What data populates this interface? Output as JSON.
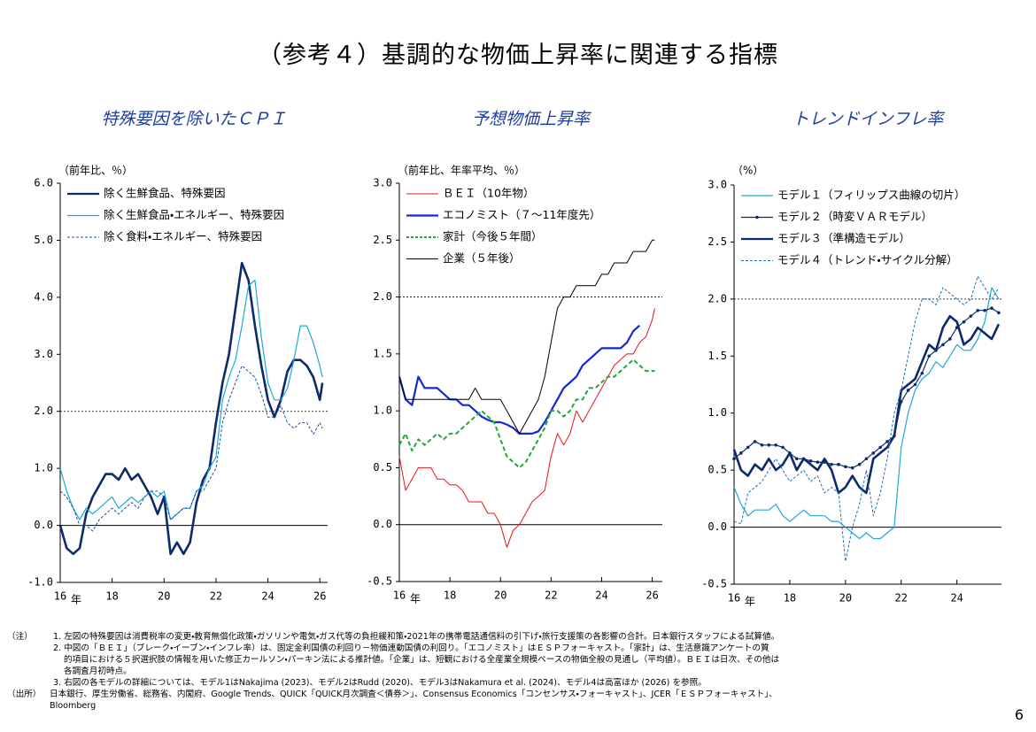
{
  "page": {
    "title": "（参考４）基調的な物価上昇率に関連する指標",
    "notes_label": "（注）",
    "notes": [
      "1. 左図の特殊要因は消費税率の変更・教育無償化政策・ガソリンや電気・ガス代等の負担緩和策・2021年の携帯電話通信料の引下げ・旅行支援策の各影響の合計。日本銀行スタッフによる試算値。",
      "2. 中図の「ＢＥＩ」（ブレーク・イーブン・インフレ率）は、固定金利国債の利回り－物価連動国債の利回り。「エコノミスト」はＥＳＰフォーキャスト。「家計」は、生活意識アンケートの質",
      "的項目における５択選択肢の情報を用いた修正カールソン・パーキン法による推計値。「企業」は、短観における全産業全規模ベースの物価全般の見通し（平均値）。ＢＥＩは日次、その他は",
      "各調査月初時点。",
      "3. 右図の各モデルの詳細については、モデル1はNakajima (2023)、モデル2はRudd (2020)、モデル3はNakamura et al. (2024)、モデル4は高富ほか (2026) を参照。"
    ],
    "source_label": "（出所）",
    "source": [
      "日本銀行、厚生労働省、総務省、内閣府、Google Trends、QUICK「QUICK月次調査＜債券＞」、Consensus Economics「コンセンサス・フォーキャスト」、JCER「ＥＳＰフォーキャスト」、",
      "Bloomberg"
    ],
    "page_number": "6"
  },
  "chart_data": [
    {
      "type": "line",
      "title": "特殊要因を除いたＣＰＩ",
      "y_unit": "（前年比、％）",
      "x_unit": "年",
      "x": [
        16,
        16.25,
        16.5,
        16.75,
        17,
        17.25,
        17.5,
        17.75,
        18,
        18.25,
        18.5,
        18.75,
        19,
        19.25,
        19.5,
        19.75,
        20,
        20.25,
        20.5,
        20.75,
        21,
        21.25,
        21.5,
        21.75,
        22,
        22.25,
        22.5,
        22.75,
        23,
        23.25,
        23.5,
        23.75,
        24,
        24.25,
        24.5,
        24.75,
        25,
        25.25,
        25.5,
        25.75,
        26,
        26.1
      ],
      "xlim": [
        16,
        26.3
      ],
      "xticks": [
        16,
        18,
        20,
        22,
        24,
        26
      ],
      "ylim": [
        -1,
        6
      ],
      "yticks": [
        {
          "value": -1,
          "label": "-1.0"
        },
        {
          "value": 0,
          "label": "0.0"
        },
        {
          "value": 1,
          "label": "1.0"
        },
        {
          "value": 2,
          "label": "2.0"
        },
        {
          "value": 3,
          "label": "3.0"
        },
        {
          "value": 4,
          "label": "4.0"
        },
        {
          "value": 5,
          "label": "5.0"
        },
        {
          "value": 6,
          "label": "6.0"
        }
      ],
      "ref_line": 2,
      "series": [
        {
          "name": "除く生鮮食品、特殊要因",
          "color": "#0d2a6b",
          "width": 2.6,
          "dash": false,
          "marker": false,
          "values": [
            0,
            -0.4,
            -0.5,
            -0.4,
            0.2,
            0.5,
            0.7,
            0.9,
            0.9,
            0.8,
            1,
            0.8,
            0.9,
            0.7,
            0.5,
            0.2,
            0.5,
            -0.5,
            -0.3,
            -0.5,
            -0.3,
            0.4,
            0.8,
            1,
            1.8,
            2.5,
            3,
            3.8,
            4.6,
            4.3,
            3.5,
            2.8,
            2.2,
            1.9,
            2.2,
            2.7,
            2.9,
            2.9,
            2.8,
            2.6,
            2.2,
            2.5
          ]
        },
        {
          "name": "除く生鮮食品・エネルギー、特殊要因",
          "color": "#1ca7e0",
          "width": 1.2,
          "dash": false,
          "marker": false,
          "values": [
            1,
            0.6,
            0.3,
            0.1,
            0.3,
            0.2,
            0.3,
            0.4,
            0.5,
            0.3,
            0.4,
            0.5,
            0.4,
            0.5,
            0.6,
            0.5,
            0.6,
            0.1,
            0.2,
            0.3,
            0.3,
            0.6,
            0.7,
            1,
            1.2,
            2.2,
            2.6,
            2.9,
            3.5,
            4.2,
            4.3,
            3.3,
            2.5,
            2.2,
            2.2,
            2.4,
            2.9,
            3.5,
            3.5,
            3.2,
            2.8,
            2.6
          ]
        },
        {
          "name": "除く食料・エネルギー、特殊要因",
          "color": "#1a4ea0",
          "width": 1,
          "dash": true,
          "marker": false,
          "values": [
            0.6,
            0.5,
            0.3,
            0,
            0,
            -0.1,
            0.1,
            0.2,
            0.3,
            0.2,
            0.3,
            0.4,
            0.3,
            0.5,
            0.6,
            0.6,
            0.5,
            0.1,
            0.2,
            0.3,
            0.3,
            0.6,
            0.6,
            0.8,
            1,
            1.8,
            2.2,
            2.5,
            2.8,
            2.7,
            2.6,
            2.3,
            1.9,
            1.9,
            2.1,
            1.8,
            1.7,
            1.8,
            1.8,
            1.6,
            1.8,
            1.7
          ]
        }
      ]
    },
    {
      "type": "line",
      "title": "予想物価上昇率",
      "y_unit": "（前年比、年率平均、％）",
      "x_unit": "年",
      "x": [
        16,
        16.25,
        16.5,
        16.75,
        17,
        17.25,
        17.5,
        17.75,
        18,
        18.25,
        18.5,
        18.75,
        19,
        19.25,
        19.5,
        19.75,
        20,
        20.25,
        20.5,
        20.75,
        21,
        21.25,
        21.5,
        21.75,
        22,
        22.25,
        22.5,
        22.75,
        23,
        23.25,
        23.5,
        23.75,
        24,
        24.25,
        24.5,
        24.75,
        25,
        25.25,
        25.5,
        25.75,
        26,
        26.1
      ],
      "xlim": [
        16,
        26.4
      ],
      "xticks": [
        16,
        18,
        20,
        22,
        24,
        26
      ],
      "ylim": [
        -0.5,
        3
      ],
      "yticks": [
        {
          "value": -0.5,
          "label": "-0.5"
        },
        {
          "value": 0,
          "label": "0.0"
        },
        {
          "value": 0.5,
          "label": "0.5"
        },
        {
          "value": 1,
          "label": "1.0"
        },
        {
          "value": 1.5,
          "label": "1.5"
        },
        {
          "value": 2,
          "label": "2.0"
        },
        {
          "value": 2.5,
          "label": "2.5"
        },
        {
          "value": 3,
          "label": "3.0"
        }
      ],
      "ref_line": 2,
      "series": [
        {
          "name": "ＢＥＩ（10年物）",
          "color": "#e8141b",
          "width": 1,
          "dash": false,
          "marker": false,
          "values": [
            0.6,
            0.3,
            0.4,
            0.5,
            0.5,
            0.5,
            0.4,
            0.4,
            0.35,
            0.35,
            0.3,
            0.2,
            0.2,
            0.2,
            0.1,
            0.1,
            0,
            -0.2,
            -0.05,
            0,
            0.1,
            0.2,
            0.25,
            0.3,
            0.6,
            0.8,
            0.7,
            0.8,
            1,
            0.9,
            1,
            1.1,
            1.2,
            1.3,
            1.4,
            1.45,
            1.5,
            1.5,
            1.6,
            1.65,
            1.8,
            1.9
          ]
        },
        {
          "name": "エコノミスト（７～11年度先）",
          "color": "#1428d6",
          "width": 2.2,
          "dash": false,
          "marker": false,
          "values": [
            1.3,
            1.1,
            1.05,
            1.3,
            1.2,
            1.2,
            1.2,
            1.15,
            1.1,
            1.1,
            1.05,
            1.05,
            1,
            0.95,
            0.92,
            0.9,
            0.9,
            0.88,
            0.85,
            0.8,
            0.8,
            0.8,
            0.82,
            0.9,
            1,
            1.1,
            1.2,
            1.25,
            1.3,
            1.4,
            1.45,
            1.5,
            1.55,
            1.55,
            1.55,
            1.55,
            1.6,
            1.7,
            1.75,
            null,
            null,
            null
          ]
        },
        {
          "name": "家計（今後５年間）",
          "color": "#22a83a",
          "width": 2,
          "dash": true,
          "marker": false,
          "values": [
            0.7,
            0.8,
            0.65,
            0.75,
            0.7,
            0.75,
            0.8,
            0.75,
            0.8,
            0.8,
            0.85,
            0.9,
            0.95,
            1,
            0.95,
            0.9,
            0.75,
            0.6,
            0.55,
            0.5,
            0.55,
            0.65,
            0.75,
            0.85,
            1,
            1,
            0.95,
            1,
            1.1,
            1.1,
            1.2,
            1.2,
            1.25,
            1.3,
            1.3,
            1.35,
            1.4,
            1.45,
            1.4,
            1.35,
            1.35,
            1.35
          ]
        },
        {
          "name": "企業（５年後）",
          "color": "#000000",
          "width": 1,
          "dash": false,
          "marker": false,
          "values": [
            1.3,
            1.1,
            1.1,
            1.1,
            1.1,
            1.1,
            1.1,
            1.1,
            1.1,
            1.1,
            1.1,
            1.1,
            1.2,
            1.1,
            1.1,
            1.1,
            1.1,
            1,
            0.9,
            0.8,
            0.9,
            1,
            1.1,
            1.3,
            1.6,
            1.9,
            2,
            2,
            2.1,
            2.1,
            2.1,
            2.1,
            2.2,
            2.2,
            2.3,
            2.3,
            2.3,
            2.4,
            2.4,
            2.4,
            2.5,
            2.5
          ]
        }
      ]
    },
    {
      "type": "line",
      "title": "トレンドインフレ率",
      "y_unit": "（%）",
      "x_unit": "年",
      "x": [
        16,
        16.25,
        16.5,
        16.75,
        17,
        17.25,
        17.5,
        17.75,
        18,
        18.25,
        18.5,
        18.75,
        19,
        19.25,
        19.5,
        19.75,
        20,
        20.25,
        20.5,
        20.75,
        21,
        21.25,
        21.5,
        21.75,
        22,
        22.25,
        22.5,
        22.75,
        23,
        23.25,
        23.5,
        23.75,
        24,
        24.25,
        24.5,
        24.75,
        25,
        25.25,
        25.5
      ],
      "xlim": [
        16,
        25.6
      ],
      "xticks": [
        16,
        18,
        20,
        22,
        24
      ],
      "ylim": [
        -0.5,
        3
      ],
      "yticks": [
        {
          "value": -0.5,
          "label": "-0.5"
        },
        {
          "value": 0,
          "label": "0.0"
        },
        {
          "value": 0.5,
          "label": "0.5"
        },
        {
          "value": 1,
          "label": "1.0"
        },
        {
          "value": 1.5,
          "label": "1.5"
        },
        {
          "value": 2,
          "label": "2.0"
        },
        {
          "value": 2.5,
          "label": "2.5"
        },
        {
          "value": 3,
          "label": "3.0"
        }
      ],
      "ref_line": 2,
      "series": [
        {
          "name": "モデル１（フィリップス曲線の切片）",
          "color": "#1ca7e0",
          "width": 1.2,
          "dash": false,
          "marker": false,
          "values": [
            0.35,
            0.2,
            0.1,
            0.15,
            0.15,
            0.15,
            0.2,
            0.1,
            0.05,
            0.1,
            0.15,
            0.1,
            0.1,
            0.1,
            0.05,
            0.05,
            0,
            -0.05,
            -0.1,
            -0.05,
            -0.1,
            -0.1,
            -0.05,
            0,
            0.7,
            1,
            1.2,
            1.3,
            1.35,
            1.45,
            1.4,
            1.5,
            1.6,
            1.55,
            1.55,
            1.65,
            1.8,
            2.1,
            2
          ]
        },
        {
          "name": "モデル２（時変ＶＡＲモデル）",
          "color": "#0d2a6b",
          "width": 1.2,
          "dash": false,
          "marker": true,
          "values": [
            0.6,
            0.65,
            0.7,
            0.75,
            0.72,
            0.72,
            0.72,
            0.7,
            0.65,
            0.6,
            0.6,
            0.58,
            0.57,
            0.57,
            0.55,
            0.55,
            0.53,
            0.52,
            0.55,
            0.6,
            0.65,
            0.7,
            0.75,
            0.8,
            1.1,
            1.2,
            1.25,
            1.35,
            1.5,
            1.55,
            1.6,
            1.65,
            1.75,
            1.8,
            1.85,
            1.9,
            1.9,
            1.92,
            1.88
          ]
        },
        {
          "name": "モデル３（準構造モデル）",
          "color": "#0d2a6b",
          "width": 2.6,
          "dash": false,
          "marker": false,
          "values": [
            0.68,
            0.5,
            0.45,
            0.55,
            0.5,
            0.6,
            0.5,
            0.55,
            0.65,
            0.5,
            0.6,
            0.55,
            0.5,
            0.6,
            0.5,
            0.3,
            0.35,
            0.45,
            0.35,
            0.3,
            0.6,
            0.65,
            0.7,
            0.8,
            1.2,
            1.25,
            1.3,
            1.45,
            1.6,
            1.55,
            1.75,
            1.85,
            1.8,
            1.6,
            1.65,
            1.75,
            1.7,
            1.65,
            1.78
          ]
        },
        {
          "name": "モデル４（トレンド・サイクル分解）",
          "color": "#1a6ec0",
          "width": 1,
          "dash": true,
          "marker": false,
          "values": [
            0.05,
            0.03,
            0.3,
            0.35,
            0.4,
            0.5,
            0.6,
            0.5,
            0.4,
            0.45,
            0.5,
            0.4,
            0.45,
            0.3,
            0.35,
            0.3,
            -0.3,
            0,
            0.2,
            0.5,
            0.1,
            0.3,
            0.6,
            1,
            1.2,
            1.5,
            1.8,
            2,
            2,
            1.95,
            2.1,
            2.05,
            2,
            1.95,
            2,
            2.2,
            2.1,
            2,
            2.1
          ]
        }
      ]
    }
  ]
}
